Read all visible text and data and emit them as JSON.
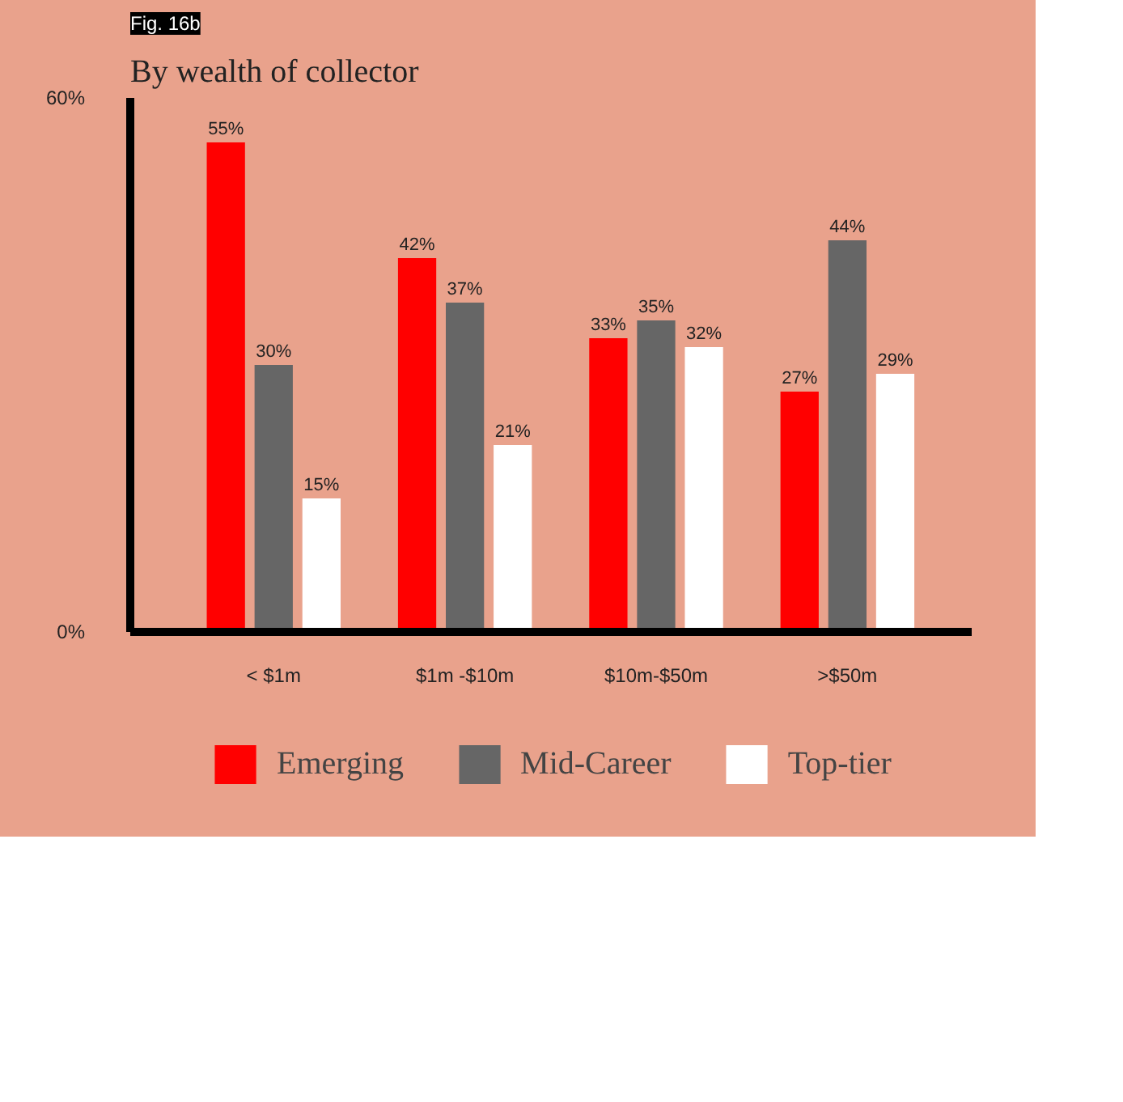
{
  "chart_data": {
    "type": "bar",
    "title": "By wealth of collector",
    "annotations": [
      "Fig. 16b"
    ],
    "categories": [
      "< $1m",
      "$1m -$10m",
      "$10m-$50m",
      ">$50m"
    ],
    "series": [
      {
        "name": "Emerging",
        "color": "#ff0000",
        "values": [
          55,
          42,
          33,
          27
        ],
        "value_labels": [
          "55%",
          "42%",
          "33%",
          "27%"
        ]
      },
      {
        "name": "Mid-Career",
        "color": "#666666",
        "values": [
          30,
          37,
          35,
          44
        ],
        "value_labels": [
          "30%",
          "37%",
          "35%",
          "44%"
        ]
      },
      {
        "name": "Top-tier",
        "color": "#ffffff",
        "values": [
          15,
          21,
          32,
          29
        ],
        "value_labels": [
          "15%",
          "21%",
          "32%",
          "29%"
        ]
      }
    ],
    "ylim": [
      0,
      60
    ],
    "yticks": [
      {
        "value": 0,
        "label": "0%"
      },
      {
        "value": 60,
        "label": "60%"
      }
    ],
    "grid": false,
    "legend": "bottom"
  }
}
